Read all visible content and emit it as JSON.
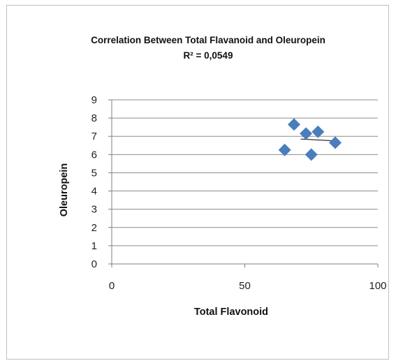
{
  "chart_data": {
    "type": "scatter",
    "title": "Correlation Between Total Flavanoid and Oleuropein",
    "subtitle": "R² =  0,0549",
    "xlabel": "Total Flavonoid",
    "ylabel": "Oleuropein",
    "xlim": [
      0,
      100
    ],
    "ylim": [
      0,
      9
    ],
    "x_ticks": [
      "0",
      "50",
      "100"
    ],
    "y_ticks": [
      "0",
      "1",
      "2",
      "3",
      "4",
      "5",
      "6",
      "7",
      "8",
      "9"
    ],
    "grid": "horizontal",
    "marker": "diamond",
    "marker_color": "#4a7ebb",
    "trendline": {
      "type": "linear",
      "x": [
        71,
        84
      ],
      "y": [
        6.85,
        6.75
      ],
      "color": "#000000"
    },
    "series": [
      {
        "x": [
          65,
          68.5,
          73,
          75,
          77.5,
          84
        ],
        "y": [
          6.25,
          7.65,
          7.15,
          6.0,
          7.25,
          6.65
        ]
      }
    ]
  }
}
